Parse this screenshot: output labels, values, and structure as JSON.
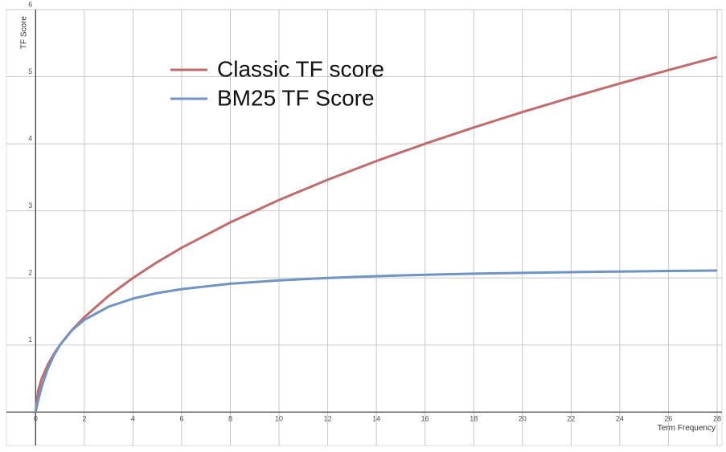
{
  "chart_data": {
    "type": "line",
    "x_label": "Term Frequency",
    "y_label": "TF Score",
    "x": [
      0,
      0.1,
      0.25,
      0.5,
      0.75,
      1,
      1.5,
      2,
      3,
      4,
      5,
      6,
      8,
      10,
      12,
      14,
      16,
      18,
      20,
      22,
      24,
      26,
      28
    ],
    "series": [
      {
        "name": "Classic TF score",
        "color": "#c46a6a",
        "values": [
          0,
          0.316,
          0.5,
          0.707,
          0.866,
          1,
          1.225,
          1.414,
          1.732,
          2,
          2.236,
          2.449,
          2.828,
          3.162,
          3.464,
          3.742,
          4,
          4.243,
          4.472,
          4.69,
          4.899,
          5.099,
          5.292
        ]
      },
      {
        "name": "BM25 TF Score",
        "color": "#6e94c4",
        "values": [
          0,
          0.169,
          0.379,
          0.647,
          0.846,
          1,
          1.222,
          1.375,
          1.571,
          1.692,
          1.774,
          1.833,
          1.913,
          1.964,
          2,
          2.026,
          2.047,
          2.063,
          2.075,
          2.086,
          2.095,
          2.103,
          2.11
        ]
      }
    ],
    "xlim": [
      -1.2,
      28.2
    ],
    "ylim": [
      -0.5,
      6.0
    ],
    "xticks": [
      0,
      2,
      4,
      6,
      8,
      10,
      12,
      14,
      16,
      18,
      20,
      22,
      24,
      26,
      28
    ],
    "yticks": [
      1,
      2,
      3,
      4,
      5,
      6
    ],
    "grid": true
  }
}
